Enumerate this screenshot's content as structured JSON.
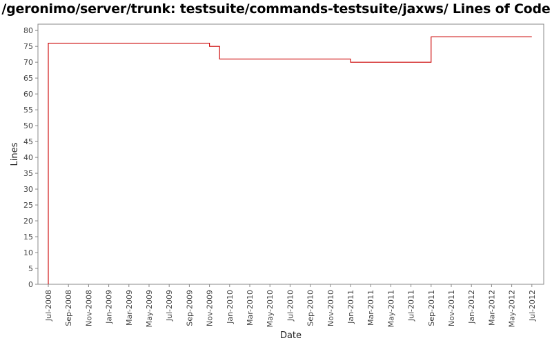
{
  "chart_data": {
    "type": "line",
    "step": true,
    "title": "/geronimo/server/trunk: testsuite/commands-testsuite/jaxws/ Lines of Code",
    "xlabel": "Date",
    "ylabel": "Lines",
    "ylim": [
      0,
      82
    ],
    "yticks": [
      0,
      5,
      10,
      15,
      20,
      25,
      30,
      35,
      40,
      45,
      50,
      55,
      60,
      65,
      70,
      75,
      80
    ],
    "xticks": [
      "Jul-2008",
      "Sep-2008",
      "Nov-2008",
      "Jan-2009",
      "Mar-2009",
      "May-2009",
      "Jul-2009",
      "Sep-2009",
      "Nov-2009",
      "Jan-2010",
      "Mar-2010",
      "May-2010",
      "Jul-2010",
      "Sep-2010",
      "Nov-2010",
      "Jan-2011",
      "Mar-2011",
      "May-2011",
      "Jul-2011",
      "Sep-2011",
      "Nov-2011",
      "Jan-2012",
      "Mar-2012",
      "May-2012",
      "Jul-2012"
    ],
    "grid": false,
    "series": [
      {
        "color": "#cc0000",
        "x": [
          "Jul-2008",
          "Jul-2008",
          "Nov-2009",
          "Dec-2009",
          "Jan-2011",
          "Sep-2011",
          "Jul-2012"
        ],
        "values": [
          0,
          76,
          75,
          71,
          70,
          78,
          78
        ]
      }
    ]
  }
}
